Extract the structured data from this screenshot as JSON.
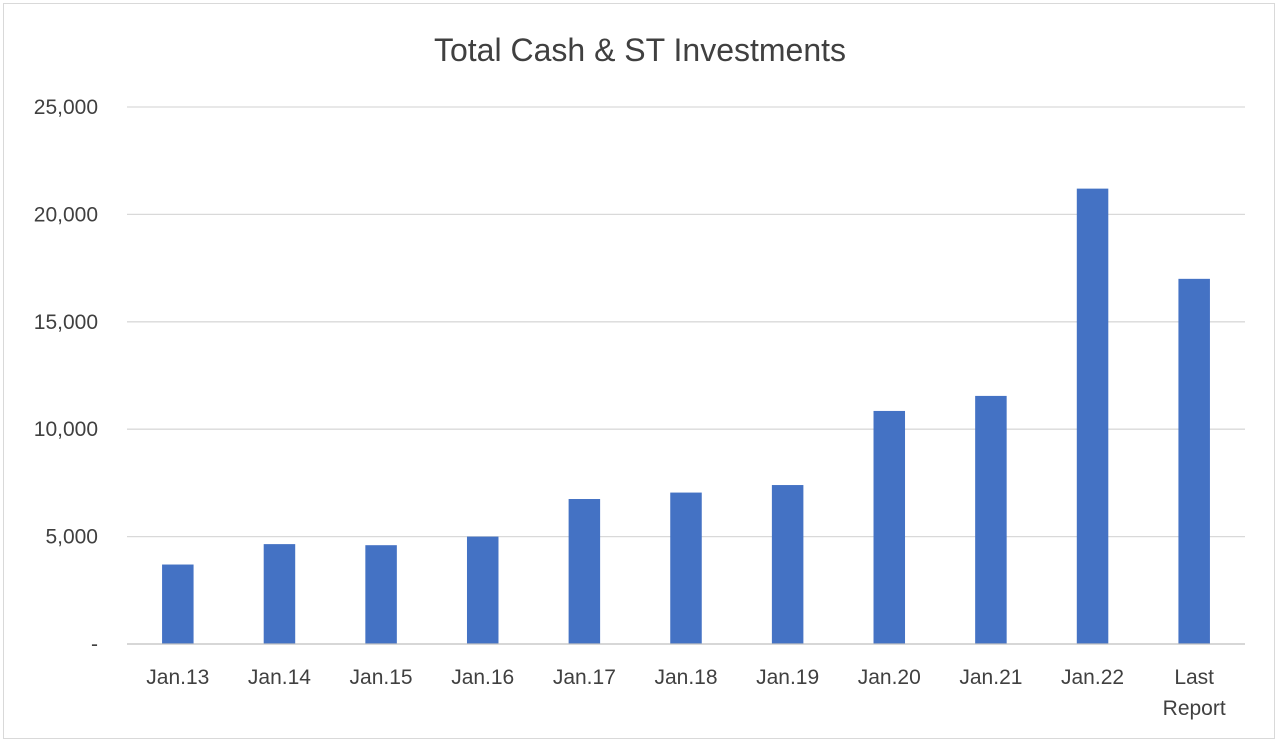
{
  "chart_data": {
    "type": "bar",
    "title": "Total Cash & ST Investments",
    "xlabel": "",
    "ylabel": "",
    "categories": [
      "Jan.13",
      "Jan.14",
      "Jan.15",
      "Jan.16",
      "Jan.17",
      "Jan.18",
      "Jan.19",
      "Jan.20",
      "Jan.21",
      "Jan.22",
      "Last Report"
    ],
    "values": [
      3700,
      4650,
      4600,
      5000,
      6750,
      7050,
      7400,
      10850,
      11550,
      21200,
      17000
    ],
    "ylim": [
      0,
      25000
    ],
    "y_ticks": [
      0,
      5000,
      10000,
      15000,
      20000,
      25000
    ],
    "y_tick_labels": [
      "-",
      "5,000",
      "10,000",
      "15,000",
      "20,000",
      "25,000"
    ],
    "grid": true,
    "legend": "none",
    "bar_color": "#4472c4"
  }
}
